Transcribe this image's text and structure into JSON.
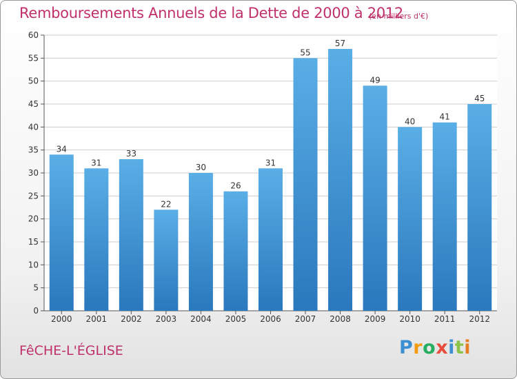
{
  "header": {
    "title": "Remboursements Annuels de la Dette de 2000 à 2012",
    "unit": "(en milliers d'€)"
  },
  "footer": {
    "commune": "FêCHE-L'ÉGLISE",
    "logo_text": "Proxiti"
  },
  "colors": {
    "title": "#c0306a",
    "bar_top": "#5aaee6",
    "bar_bottom": "#2a78bd",
    "grid": "#cccccc",
    "logo": [
      "#3c8fd0",
      "#f39c12",
      "#27ae60",
      "#e74c3c",
      "#3c8fd0",
      "#8bc34a",
      "#e67e22"
    ]
  },
  "chart_data": {
    "type": "bar",
    "title": "Remboursements Annuels de la Dette de 2000 à 2012",
    "xlabel": "",
    "ylabel": "",
    "categories": [
      "2000",
      "2001",
      "2002",
      "2003",
      "2004",
      "2005",
      "2006",
      "2007",
      "2008",
      "2009",
      "2010",
      "2011",
      "2012"
    ],
    "values": [
      34,
      31,
      33,
      22,
      30,
      26,
      31,
      55,
      57,
      49,
      40,
      41,
      45
    ],
    "ylim": [
      0,
      60
    ],
    "yticks": [
      0,
      5,
      10,
      15,
      20,
      25,
      30,
      35,
      40,
      45,
      50,
      55,
      60
    ],
    "grid": true,
    "legend": "none"
  }
}
